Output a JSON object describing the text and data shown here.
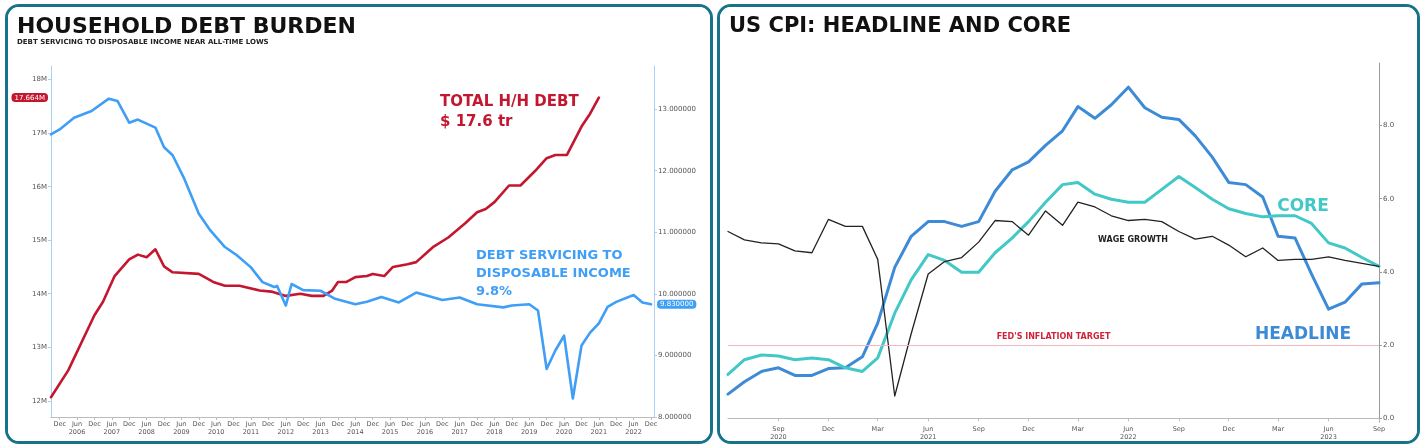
{
  "chart_data": [
    {
      "type": "line",
      "title": "HOUSEHOLD DEBT BURDEN",
      "subtitle": "DEBT SERVICING TO DISPOSABLE INCOME NEAR ALL-TIME LOWS",
      "annotations": [
        "17.664M",
        "9.830000",
        "TOTAL H/H DEBT\n$ 17.6 tr",
        "DEBT SERVICING TO\nDISPOSABLE INCOME\n9.8%"
      ],
      "series": [
        {
          "color": "#c3172f",
          "x": [
            "2005-09",
            "2006-03",
            "2006-12",
            "2007-03",
            "2007-07",
            "2007-12",
            "2008-03",
            "2008-06",
            "2008-09",
            "2008-12",
            "2009-03",
            "2009-12",
            "2010-05",
            "2010-09",
            "2011-02",
            "2011-09",
            "2012-01",
            "2012-06",
            "2012-11",
            "2013-03",
            "2013-07",
            "2013-10",
            "2013-12",
            "2014-03",
            "2014-06",
            "2014-10",
            "2014-12",
            "2015-04",
            "2015-07",
            "2015-12",
            "2016-03",
            "2016-09",
            "2017-02",
            "2017-08",
            "2017-12",
            "2018-03",
            "2018-06",
            "2018-11",
            "2019-03",
            "2019-08",
            "2019-12",
            "2020-03",
            "2020-07",
            "2020-12",
            "2021-03",
            "2021-06"
          ],
          "values": [
            12.07,
            12.57,
            13.6,
            13.85,
            14.33,
            14.64,
            14.73,
            14.68,
            14.83,
            14.51,
            14.4,
            14.37,
            14.22,
            14.15,
            14.15,
            14.06,
            14.04,
            13.96,
            14.0,
            13.96,
            13.96,
            14.06,
            14.22,
            14.22,
            14.31,
            14.33,
            14.37,
            14.33,
            14.5,
            14.55,
            14.59,
            14.88,
            15.05,
            15.32,
            15.52,
            15.58,
            15.71,
            16.02,
            16.02,
            16.29,
            16.53,
            16.59,
            16.59,
            17.12,
            17.36,
            17.66
          ]
        },
        {
          "color": "#3f9ef5",
          "axis": "y2",
          "x": [
            "2005-09",
            "2005-12",
            "2006-05",
            "2006-11",
            "2007-05",
            "2007-08",
            "2007-12",
            "2008-03",
            "2008-09",
            "2008-12",
            "2009-03",
            "2009-07",
            "2009-12",
            "2010-04",
            "2010-09",
            "2011-01",
            "2011-06",
            "2011-10",
            "2012-02",
            "2012-03",
            "2012-06",
            "2012-08",
            "2012-12",
            "2013-06",
            "2013-11",
            "2014-06",
            "2014-10",
            "2015-03",
            "2015-09",
            "2016-03",
            "2016-12",
            "2017-06",
            "2017-12",
            "2018-09",
            "2018-12",
            "2019-06",
            "2019-09",
            "2019-12",
            "2020-03",
            "2020-06",
            "2020-09",
            "2020-12",
            "2021-03",
            "2021-06",
            "2021-09",
            "2021-12",
            "2022-06",
            "2022-09",
            "2022-12"
          ],
          "values": [
            12.59,
            12.67,
            12.86,
            12.97,
            13.17,
            13.13,
            12.78,
            12.83,
            12.7,
            12.38,
            12.25,
            11.87,
            11.3,
            11.03,
            10.76,
            10.63,
            10.43,
            10.19,
            10.11,
            10.13,
            9.81,
            10.16,
            10.06,
            10.05,
            9.92,
            9.83,
            9.87,
            9.95,
            9.86,
            10.02,
            9.9,
            9.94,
            9.83,
            9.78,
            9.81,
            9.83,
            9.73,
            8.78,
            9.08,
            9.32,
            8.3,
            9.16,
            9.37,
            9.52,
            9.79,
            9.87,
            9.98,
            9.86,
            9.83
          ]
        }
      ],
      "xlim": [
        "2005-09",
        "2023-01"
      ],
      "xticks": [
        {
          "value": "2005-12",
          "label": "Dec"
        },
        {
          "value": "2006-06",
          "label": "Jun\n2006"
        },
        {
          "value": "2006-12",
          "label": "Dec"
        },
        {
          "value": "2007-06",
          "label": "Jun\n2007"
        },
        {
          "value": "2007-12",
          "label": "Dec"
        },
        {
          "value": "2008-06",
          "label": "Jun\n2008"
        },
        {
          "value": "2008-12",
          "label": "Dec"
        },
        {
          "value": "2009-06",
          "label": "Jun\n2009"
        },
        {
          "value": "2009-12",
          "label": "Dec"
        },
        {
          "value": "2010-06",
          "label": "Jun\n2010"
        },
        {
          "value": "2010-12",
          "label": "Dec"
        },
        {
          "value": "2011-06",
          "label": "Jun\n2011"
        },
        {
          "value": "2011-12",
          "label": "Dec"
        },
        {
          "value": "2012-06",
          "label": "Jun\n2012"
        },
        {
          "value": "2012-12",
          "label": "Dec"
        },
        {
          "value": "2013-06",
          "label": "Jun\n2013"
        },
        {
          "value": "2013-12",
          "label": "Dec"
        },
        {
          "value": "2014-06",
          "label": "Jun\n2014"
        },
        {
          "value": "2014-12",
          "label": "Dec"
        },
        {
          "value": "2015-06",
          "label": "Jun\n2015"
        },
        {
          "value": "2015-12",
          "label": "Dec"
        },
        {
          "value": "2016-06",
          "label": "Jun\n2016"
        },
        {
          "value": "2016-12",
          "label": "Dec"
        },
        {
          "value": "2017-06",
          "label": "Jun\n2017"
        },
        {
          "value": "2017-12",
          "label": "Dec"
        },
        {
          "value": "2018-06",
          "label": "Jun\n2018"
        },
        {
          "value": "2018-12",
          "label": "Dec"
        },
        {
          "value": "2019-06",
          "label": "Jun\n2019"
        },
        {
          "value": "2019-12",
          "label": "Dec"
        },
        {
          "value": "2020-06",
          "label": "Jun\n2020"
        },
        {
          "value": "2020-12",
          "label": "Dec"
        },
        {
          "value": "2021-06",
          "label": "Jun\n2021"
        },
        {
          "value": "2021-12",
          "label": "Dec"
        },
        {
          "value": "2022-06",
          "label": "Jun\n2022"
        },
        {
          "value": "2022-12",
          "label": "Dec"
        }
      ],
      "ylim": [
        11.7,
        18.25
      ],
      "yticks": [
        {
          "value": 12,
          "label": "12M"
        },
        {
          "value": 13,
          "label": "13M"
        },
        {
          "value": 14,
          "label": "14M"
        },
        {
          "value": 15,
          "label": "15M"
        },
        {
          "value": 16,
          "label": "16M"
        },
        {
          "value": 17,
          "label": "17M"
        },
        {
          "value": 18,
          "label": "18M"
        }
      ],
      "y2lim": [
        8,
        13.7
      ],
      "y2ticks": [
        {
          "value": 8,
          "label": "8.000000"
        },
        {
          "value": 9,
          "label": "9.000000"
        },
        {
          "value": 10,
          "label": "10.000000"
        },
        {
          "value": 11,
          "label": "11.000000"
        },
        {
          "value": 12,
          "label": "12.000000"
        },
        {
          "value": 13,
          "label": "13.000000"
        }
      ]
    },
    {
      "type": "line",
      "title": "US CPI: HEADLINE AND CORE",
      "x": [
        "2020-06",
        "2020-07",
        "2020-08",
        "2020-09",
        "2020-10",
        "2020-11",
        "2020-12",
        "2021-01",
        "2021-02",
        "2021-03",
        "2021-04",
        "2021-05",
        "2021-06",
        "2021-07",
        "2021-08",
        "2021-09",
        "2021-10",
        "2021-11",
        "2021-12",
        "2022-01",
        "2022-02",
        "2022-03",
        "2022-04",
        "2022-05",
        "2022-06",
        "2022-07",
        "2022-08",
        "2022-09",
        "2022-10",
        "2022-11",
        "2022-12",
        "2023-01",
        "2023-02",
        "2023-03",
        "2023-04",
        "2023-05",
        "2023-06",
        "2023-07",
        "2023-08",
        "2023-09"
      ],
      "series": [
        {
          "name": "HEADLINE",
          "color": "#3d8ad6",
          "values": [
            0.66,
            1.0,
            1.28,
            1.38,
            1.17,
            1.17,
            1.36,
            1.38,
            1.68,
            2.6,
            4.12,
            4.97,
            5.37,
            5.37,
            5.24,
            5.37,
            6.2,
            6.78,
            7.0,
            7.45,
            7.85,
            8.51,
            8.19,
            8.56,
            9.04,
            8.48,
            8.22,
            8.16,
            7.71,
            7.13,
            6.44,
            6.38,
            6.04,
            4.97,
            4.92,
            3.94,
            2.98,
            3.17,
            3.67,
            3.7
          ]
        },
        {
          "name": "CORE",
          "color": "#43c8c8",
          "values": [
            1.2,
            1.6,
            1.73,
            1.7,
            1.6,
            1.65,
            1.6,
            1.38,
            1.28,
            1.65,
            2.87,
            3.78,
            4.47,
            4.31,
            3.99,
            3.99,
            4.52,
            4.92,
            5.37,
            5.9,
            6.38,
            6.44,
            6.12,
            5.98,
            5.9,
            5.9,
            6.25,
            6.6,
            6.3,
            5.98,
            5.72,
            5.59,
            5.5,
            5.53,
            5.53,
            5.32,
            4.79,
            4.65,
            4.39,
            4.15
          ]
        },
        {
          "name": "WAGE GROWTH",
          "color": "#222222",
          "values": [
            5.1,
            4.87,
            4.79,
            4.76,
            4.57,
            4.52,
            5.43,
            5.24,
            5.24,
            4.34,
            0.61,
            2.31,
            3.94,
            4.28,
            4.39,
            4.81,
            5.4,
            5.37,
            5.0,
            5.66,
            5.27,
            5.9,
            5.77,
            5.53,
            5.4,
            5.43,
            5.37,
            5.1,
            4.89,
            4.97,
            4.73,
            4.41,
            4.65,
            4.31,
            4.34,
            4.34,
            4.41,
            4.31,
            4.23,
            4.15
          ]
        }
      ],
      "ref_lines": [
        {
          "axis": "y",
          "value": 2,
          "label": "FED'S INFLATION TARGET",
          "color": "#f2b6c0"
        }
      ],
      "xlim": [
        "2020-06",
        "2023-09"
      ],
      "xticks": [
        {
          "value": "2020-09",
          "label": "Sep\n2020"
        },
        {
          "value": "2020-12",
          "label": "Dec"
        },
        {
          "value": "2021-03",
          "label": "Mar"
        },
        {
          "value": "2021-06",
          "label": "Jun\n2021"
        },
        {
          "value": "2021-09",
          "label": "Sep"
        },
        {
          "value": "2021-12",
          "label": "Dec"
        },
        {
          "value": "2022-03",
          "label": "Mar"
        },
        {
          "value": "2022-06",
          "label": "Jun\n2022"
        },
        {
          "value": "2022-09",
          "label": "Sep"
        },
        {
          "value": "2022-12",
          "label": "Dec"
        },
        {
          "value": "2023-03",
          "label": "Mar"
        },
        {
          "value": "2023-06",
          "label": "Jun\n2023"
        },
        {
          "value": "2023-09",
          "label": "Sep"
        }
      ],
      "ylim": [
        -0.1,
        9.7
      ],
      "yticks": [
        {
          "value": 0,
          "label": "0.0"
        },
        {
          "value": 2,
          "label": "2.0"
        },
        {
          "value": 4,
          "label": "4.0"
        },
        {
          "value": 6,
          "label": "6.0"
        },
        {
          "value": 8,
          "label": "8.0"
        }
      ]
    }
  ]
}
